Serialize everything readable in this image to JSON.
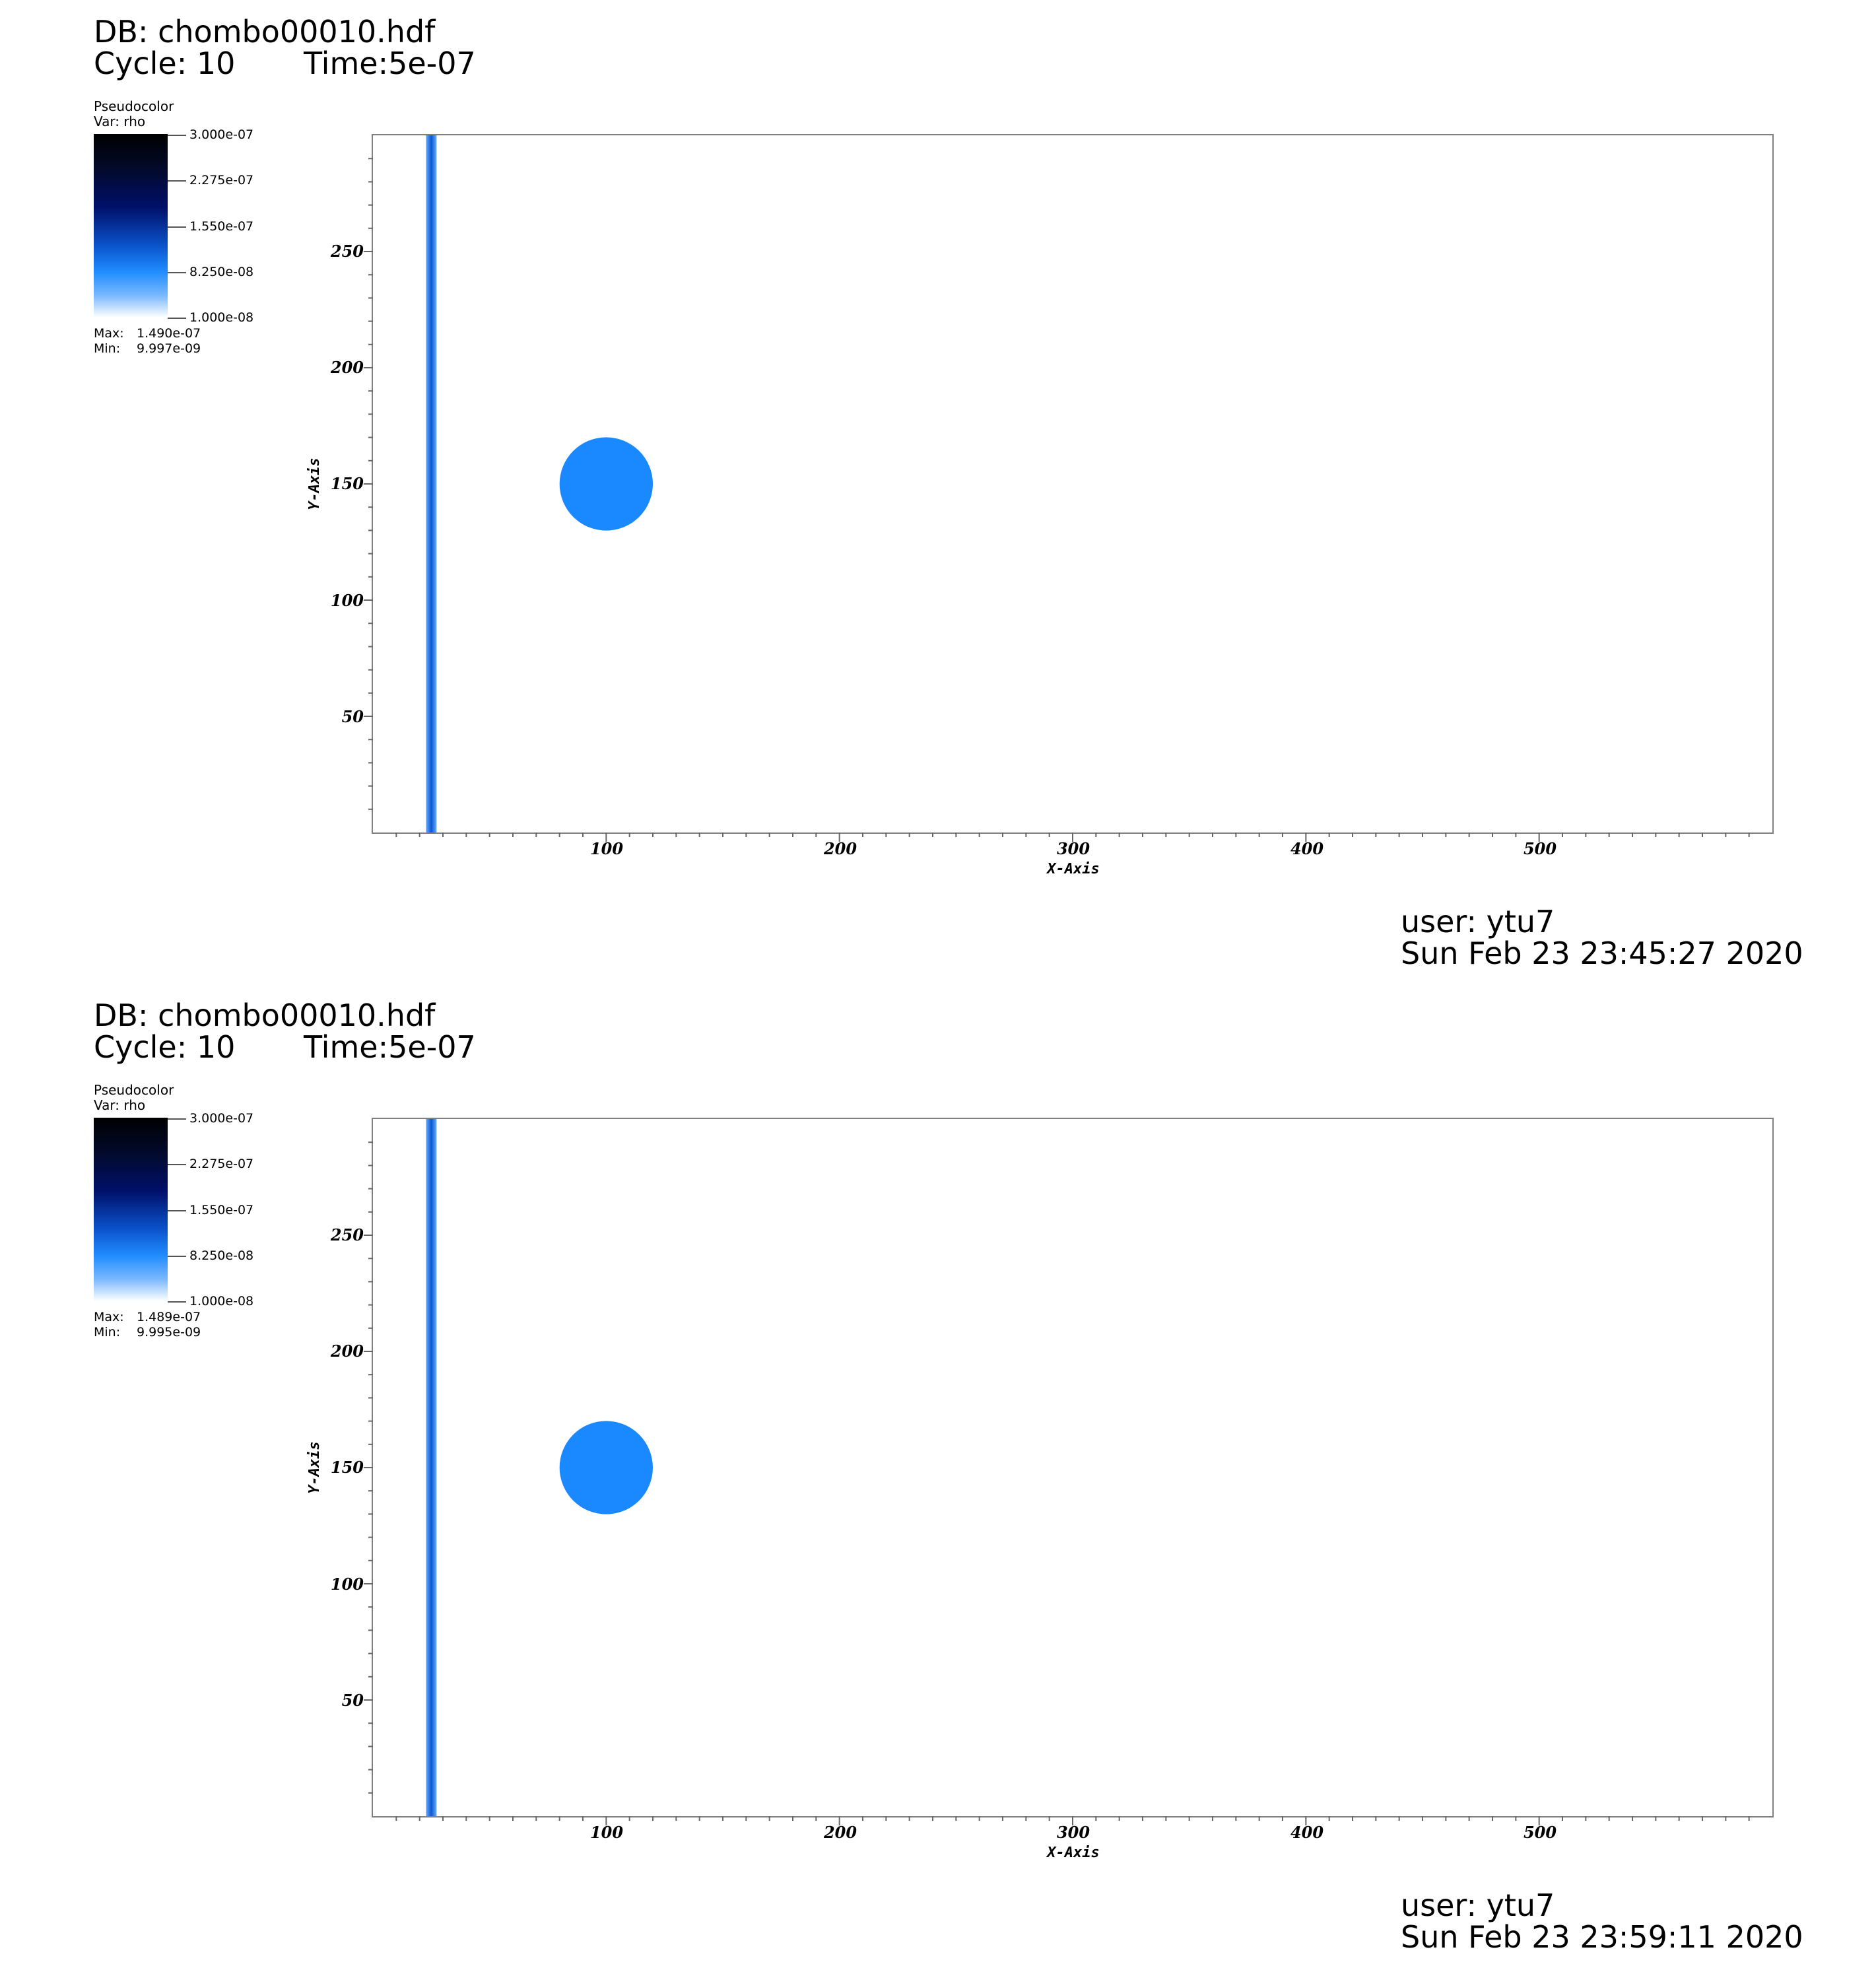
{
  "panels": [
    {
      "db_label": "DB: chombo00010.hdf",
      "cycle_label": "Cycle: 10",
      "time_label": "Time:5e-07",
      "legend": {
        "title": "Pseudocolor",
        "var_label": "Var: rho",
        "tick_labels": [
          "3.000e-07",
          "2.275e-07",
          "1.550e-07",
          "8.250e-08",
          "1.000e-08"
        ],
        "max_label": "Max:",
        "max_value": "1.490e-07",
        "min_label": "Min:",
        "min_value": "9.997e-09",
        "colors": [
          "#000000",
          "#00106a",
          "#1f8cff",
          "#ffffff"
        ]
      },
      "plot": {
        "x_axis_title": "X-Axis",
        "y_axis_title": "Y-Axis",
        "x_tick_labels": [
          "100",
          "200",
          "300",
          "400",
          "500"
        ],
        "y_tick_labels": [
          "50",
          "100",
          "150",
          "200",
          "250"
        ],
        "x_range": [
          0,
          600
        ],
        "y_range": [
          0,
          300
        ],
        "stripe_x": 25,
        "stripe_color": "#0a58d0",
        "circle_center": [
          100,
          150
        ],
        "circle_radius": 20,
        "circle_color": "#1a88ff"
      },
      "user_label": "user: ytu7",
      "date_label": "Sun Feb 23 23:45:27 2020"
    },
    {
      "db_label": "DB: chombo00010.hdf",
      "cycle_label": "Cycle: 10",
      "time_label": "Time:5e-07",
      "legend": {
        "title": "Pseudocolor",
        "var_label": "Var: rho",
        "tick_labels": [
          "3.000e-07",
          "2.275e-07",
          "1.550e-07",
          "8.250e-08",
          "1.000e-08"
        ],
        "max_label": "Max:",
        "max_value": "1.489e-07",
        "min_label": "Min:",
        "min_value": "9.995e-09",
        "colors": [
          "#000000",
          "#00106a",
          "#1f8cff",
          "#ffffff"
        ]
      },
      "plot": {
        "x_axis_title": "X-Axis",
        "y_axis_title": "Y-Axis",
        "x_tick_labels": [
          "100",
          "200",
          "300",
          "400",
          "500"
        ],
        "y_tick_labels": [
          "50",
          "100",
          "150",
          "200",
          "250"
        ],
        "x_range": [
          0,
          600
        ],
        "y_range": [
          0,
          300
        ],
        "stripe_x": 25,
        "stripe_color": "#0a58d0",
        "circle_center": [
          100,
          150
        ],
        "circle_radius": 20,
        "circle_color": "#1a88ff"
      },
      "user_label": "user: ytu7",
      "date_label": "Sun Feb 23 23:59:11 2020"
    }
  ]
}
